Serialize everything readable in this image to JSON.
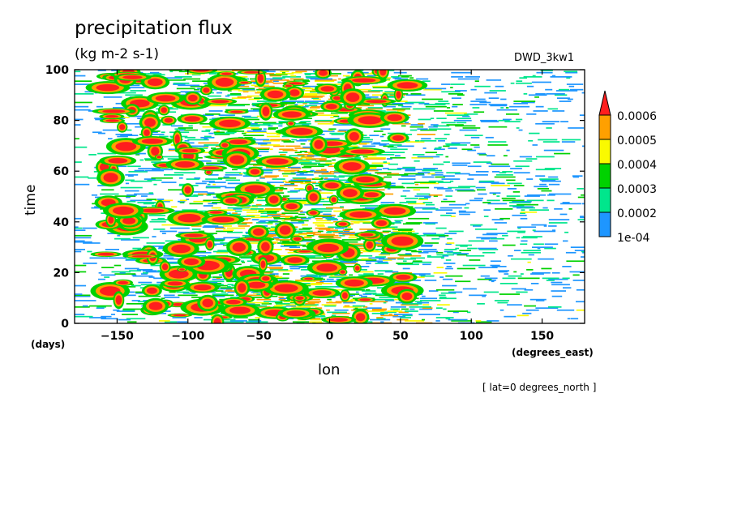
{
  "chart_data": {
    "type": "heatmap",
    "title": "precipitation flux",
    "units": "(kg m-2 s-1)",
    "run_label": "DWD_3kw1",
    "xlabel": "lon",
    "xunit": "(degrees_east)",
    "ylabel": "time",
    "yunit": "(days)",
    "slice_note": "[ lat=0 degrees_north ]",
    "xlim": [
      -180,
      180
    ],
    "ylim": [
      0,
      100
    ],
    "x_ticks": [
      -150,
      -100,
      -50,
      0,
      50,
      100,
      150
    ],
    "y_ticks": [
      0,
      20,
      40,
      60,
      80,
      100
    ],
    "colorbar": {
      "levels": [
        "1e-04",
        "0.0002",
        "0.0003",
        "0.0004",
        "0.0005",
        "0.0006"
      ],
      "colors": [
        "#1e96ff",
        "#00e68c",
        "#00d200",
        "#fafa00",
        "#ffa000",
        "#ff1e1e"
      ],
      "extend": "max"
    },
    "grid": false
  }
}
